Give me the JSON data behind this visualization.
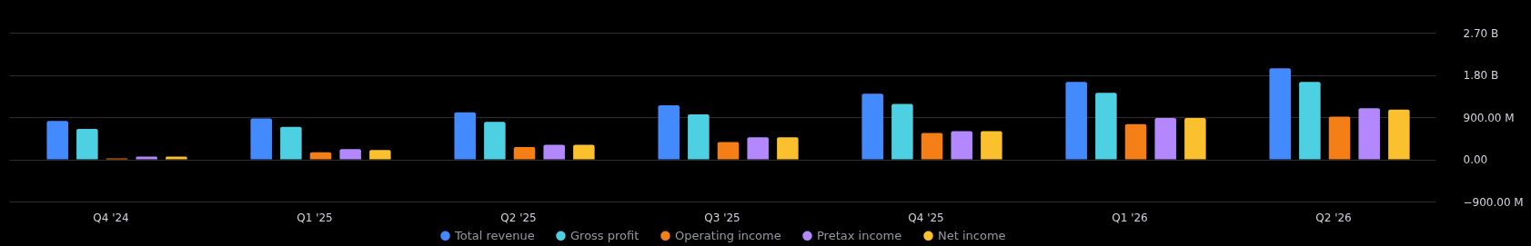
{
  "chart_data": {
    "type": "bar",
    "categories": [
      "Q4 '24",
      "Q1 '25",
      "Q2 '25",
      "Q3 '25",
      "Q4 '25",
      "Q1 '26",
      "Q2 '26"
    ],
    "series": [
      {
        "name": "Total revenue",
        "color": "#448aff",
        "values": [
          820000000,
          870000000,
          1000000000,
          1150000000,
          1400000000,
          1650000000,
          1940000000
        ]
      },
      {
        "name": "Gross profit",
        "color": "#4dd0e1",
        "values": [
          650000000,
          690000000,
          800000000,
          960000000,
          1180000000,
          1420000000,
          1650000000
        ]
      },
      {
        "name": "Operating income",
        "color": "#f57f17",
        "values": [
          20000000,
          150000000,
          260000000,
          370000000,
          560000000,
          750000000,
          910000000
        ]
      },
      {
        "name": "Pretax income",
        "color": "#b388ff",
        "values": [
          60000000,
          220000000,
          310000000,
          470000000,
          600000000,
          880000000,
          1090000000
        ]
      },
      {
        "name": "Net income",
        "color": "#fbc02d",
        "values": [
          60000000,
          200000000,
          310000000,
          470000000,
          600000000,
          880000000,
          1060000000
        ]
      }
    ],
    "ylim": [
      -900000000,
      2700000000
    ],
    "yticks": [
      {
        "value": -900000000,
        "label": "−900.00 M"
      },
      {
        "value": 0,
        "label": "0.00"
      },
      {
        "value": 900000000,
        "label": "900.00 M"
      },
      {
        "value": 1800000000,
        "label": "1.80 B"
      },
      {
        "value": 2700000000,
        "label": "2.70 B"
      }
    ],
    "grid": "y",
    "legend": "bottom"
  }
}
